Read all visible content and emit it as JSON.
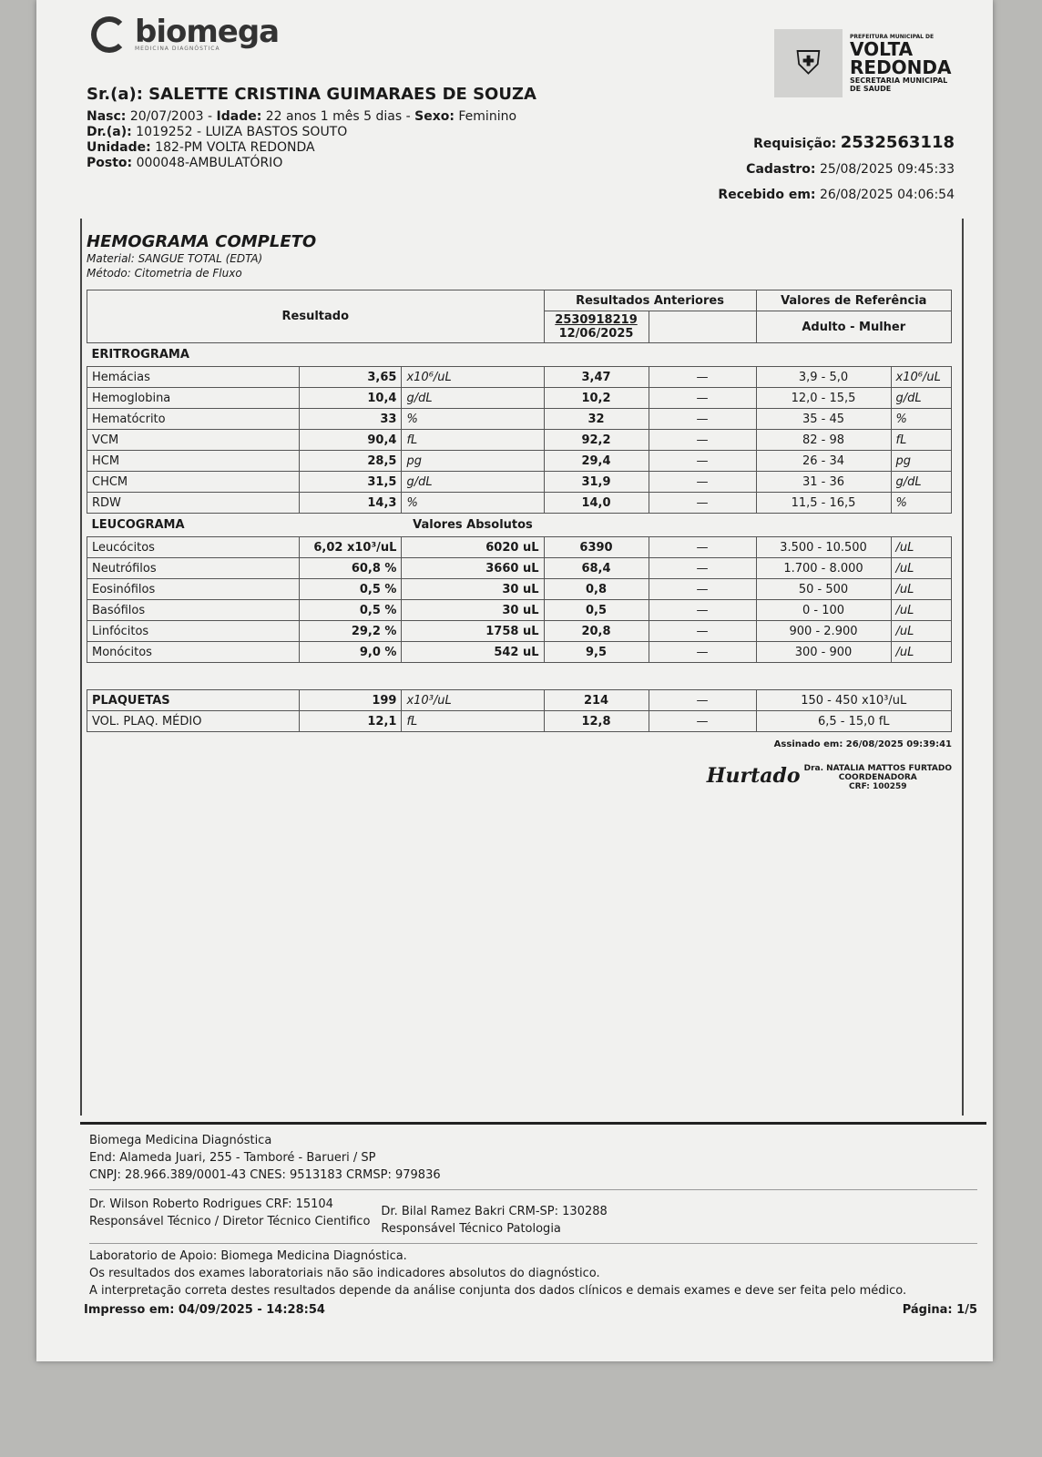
{
  "header": {
    "logo": "biomega",
    "logo_sub": "MEDICINA DIAGNÓSTICA",
    "pref_line": "PREFEITURA MUNICIPAL DE",
    "city_1": "VOLTA",
    "city_2": "REDONDA",
    "secretaria": "SECRETARIA MUNICIPAL",
    "saude": "DE SAUDE"
  },
  "patient": {
    "name": "Sr.(a): SALETTE CRISTINA GUIMARAES DE SOUZA",
    "nasc_label": "Nasc:",
    "nasc": "20/07/2003",
    "idade_label": "Idade:",
    "idade": "22 anos 1 mês 5 dias",
    "sexo_label": "Sexo:",
    "sexo": "Feminino",
    "dr_label": "Dr.(a):",
    "dr": "1019252 - LUIZA BASTOS SOUTO",
    "unidade_label": "Unidade:",
    "unidade": "182-PM VOLTA REDONDA",
    "posto_label": "Posto:",
    "posto": "000048-AMBULATÓRIO"
  },
  "request": {
    "req_label": "Requisição:",
    "req": "2532563118",
    "cad_label": "Cadastro:",
    "cad": "25/08/2025 09:45:33",
    "rec_label": "Recebido em:",
    "rec": "26/08/2025 04:06:54"
  },
  "exam": {
    "title": "HEMOGRAMA COMPLETO",
    "material": "Material: SANGUE TOTAL (EDTA)",
    "method": "Método: Citometria de Fluxo",
    "col_result": "Resultado",
    "col_prev": "Resultados Anteriores",
    "prev_id": "2530918219",
    "prev_date": "12/06/2025",
    "col_ref": "Valores de Referência",
    "ref_group": "Adulto - Mulher",
    "erit_title": "ERITROGRAMA",
    "erit": [
      {
        "name": "Hemácias",
        "value": "3,65",
        "unit": "x10⁶/uL",
        "prev": "3,47",
        "dash": "—",
        "ref": "3,9 - 5,0",
        "ref_unit": "x10⁶/uL"
      },
      {
        "name": "Hemoglobina",
        "value": "10,4",
        "unit": "g/dL",
        "prev": "10,2",
        "dash": "—",
        "ref": "12,0 - 15,5",
        "ref_unit": "g/dL"
      },
      {
        "name": "Hematócrito",
        "value": "33",
        "unit": "%",
        "prev": "32",
        "dash": "—",
        "ref": "35 - 45",
        "ref_unit": "%"
      },
      {
        "name": "VCM",
        "value": "90,4",
        "unit": "fL",
        "prev": "92,2",
        "dash": "—",
        "ref": "82 - 98",
        "ref_unit": "fL"
      },
      {
        "name": "HCM",
        "value": "28,5",
        "unit": "pg",
        "prev": "29,4",
        "dash": "—",
        "ref": "26 - 34",
        "ref_unit": "pg"
      },
      {
        "name": "CHCM",
        "value": "31,5",
        "unit": "g/dL",
        "prev": "31,9",
        "dash": "—",
        "ref": "31 - 36",
        "ref_unit": "g/dL"
      },
      {
        "name": "RDW",
        "value": "14,3",
        "unit": "%",
        "prev": "14,0",
        "dash": "—",
        "ref": "11,5 - 16,5",
        "ref_unit": "%"
      }
    ],
    "leuco_title": "LEUCOGRAMA",
    "abs_title": "Valores Absolutos",
    "leuco": [
      {
        "name": "Leucócitos",
        "value": "6,02 x10³/uL",
        "abs": "6020 uL",
        "prev": "6390",
        "dash": "—",
        "ref": "3.500 - 10.500",
        "ref_unit": "/uL"
      },
      {
        "name": "Neutrófilos",
        "value": "60,8 %",
        "abs": "3660 uL",
        "prev": "68,4",
        "dash": "—",
        "ref": "1.700 - 8.000",
        "ref_unit": "/uL"
      },
      {
        "name": "Eosinófilos",
        "value": "0,5 %",
        "abs": "30 uL",
        "prev": "0,8",
        "dash": "—",
        "ref": "50 - 500",
        "ref_unit": "/uL"
      },
      {
        "name": "Basófilos",
        "value": "0,5 %",
        "abs": "30 uL",
        "prev": "0,5",
        "dash": "—",
        "ref": "0 - 100",
        "ref_unit": "/uL"
      },
      {
        "name": "Linfócitos",
        "value": "29,2 %",
        "abs": "1758 uL",
        "prev": "20,8",
        "dash": "—",
        "ref": "900 - 2.900",
        "ref_unit": "/uL"
      },
      {
        "name": "Monócitos",
        "value": "9,0 %",
        "abs": "542 uL",
        "prev": "9,5",
        "dash": "—",
        "ref": "300 - 900",
        "ref_unit": "/uL"
      }
    ],
    "plaq": [
      {
        "name": "PLAQUETAS",
        "value": "199",
        "unit": "x10³/uL",
        "prev": "214",
        "dash": "—",
        "ref": "150 - 450 x10³/uL"
      },
      {
        "name": "VOL. PLAQ. MÉDIO",
        "value": "12,1",
        "unit": "fL",
        "prev": "12,8",
        "dash": "—",
        "ref": "6,5 - 15,0 fL"
      }
    ]
  },
  "signature": {
    "signed": "Assinado em: 26/08/2025 09:39:41",
    "hand": "Hurtado",
    "doctor": "Dra. NATALIA MATTOS FURTADO",
    "role": "COORDENADORA",
    "crf": "CRF: 100259"
  },
  "footer": {
    "lab": "Biomega Medicina Diagnóstica",
    "address": "End: Alameda Juari, 255 - Tamboré - Barueri / SP",
    "ids": "CNPJ: 28.966.389/0001-43 CNES: 9513183 CRMSP: 979836",
    "dr1": "Dr. Wilson Roberto Rodrigues CRF: 15104",
    "dr1_role": "Responsável Técnico / Diretor Técnico Cientifico",
    "dr2": "Dr. Bilal Ramez Bakri CRM-SP: 130288",
    "dr2_role": "Responsável Técnico Patologia",
    "apoio": "Laboratorio de Apoio: Biomega Medicina Diagnóstica.",
    "note1": "Os resultados dos exames laboratoriais não são indicadores absolutos do diagnóstico.",
    "note2": "A interpretação correta destes resultados depende da análise conjunta dos dados clínicos e demais exames e deve ser feita pelo médico.",
    "printed": "Impresso em: 04/09/2025 - 14:28:54",
    "page": "Página: 1/5"
  }
}
